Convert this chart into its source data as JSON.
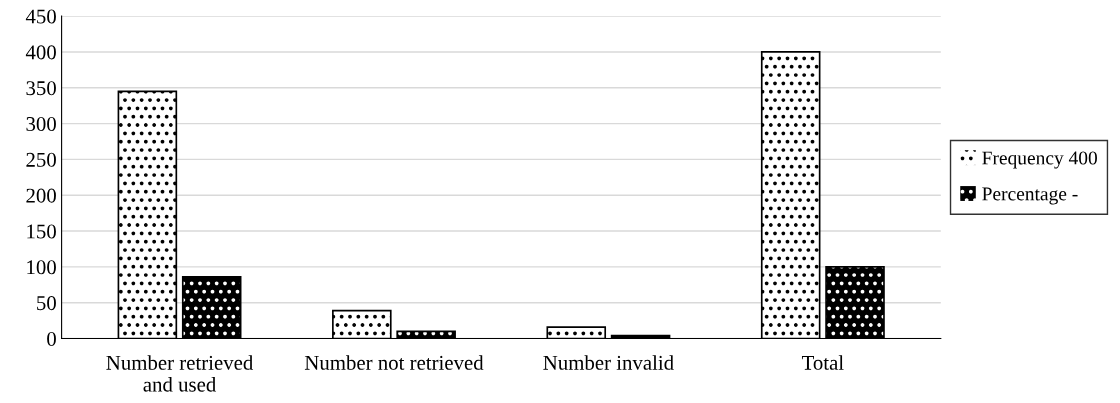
{
  "chart_data": {
    "type": "bar",
    "categories": [
      "Number retrieved\nand used",
      "Number not retrieved",
      "Number invalid",
      "Total"
    ],
    "series": [
      {
        "name": "Frequency 400",
        "color": "#ffffff",
        "values": [
          345,
          39,
          16,
          400
        ]
      },
      {
        "name": "Percentage -",
        "color": "#000000",
        "values": [
          86,
          10,
          4,
          100
        ]
      }
    ],
    "ylim": [
      0,
      450
    ],
    "yticks": [
      0,
      50,
      100,
      150,
      200,
      250,
      300,
      350,
      400,
      450
    ],
    "grid": "y",
    "legend": "right"
  }
}
